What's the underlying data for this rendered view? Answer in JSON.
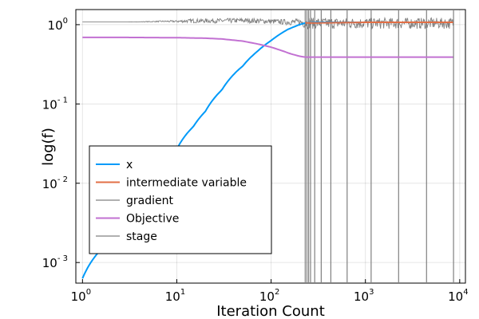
{
  "chart_data": {
    "type": "line",
    "title": "",
    "xlabel": "Iteration Count",
    "ylabel": "log(f)",
    "x_scale": "log",
    "y_scale": "log",
    "xlim": [
      0.85,
      11500
    ],
    "ylim": [
      0.00055,
      1.55
    ],
    "grid": true,
    "legend_position": "bottom-left",
    "x_ticks": [
      {
        "value": 1,
        "base": "10",
        "exp": "0"
      },
      {
        "value": 10,
        "base": "10",
        "exp": "1"
      },
      {
        "value": 100,
        "base": "10",
        "exp": "2"
      },
      {
        "value": 1000,
        "base": "10",
        "exp": "3"
      },
      {
        "value": 10000,
        "base": "10",
        "exp": "4"
      }
    ],
    "y_ticks": [
      {
        "value": 0.001,
        "base": "10",
        "exp": "- 3"
      },
      {
        "value": 0.01,
        "base": "10",
        "exp": "- 2"
      },
      {
        "value": 0.1,
        "base": "10",
        "exp": "- 1"
      },
      {
        "value": 1,
        "base": "10",
        "exp": "0"
      }
    ],
    "series": [
      {
        "name": "x",
        "color": "#009af9",
        "kind": "line",
        "x": [
          1,
          2,
          3,
          5,
          7,
          10,
          15,
          20,
          30,
          50,
          70,
          100,
          150,
          200,
          230,
          300,
          500,
          1000,
          2000,
          5000,
          8500
        ],
        "y": [
          0.00063,
          0.0019,
          0.0036,
          0.0085,
          0.015,
          0.027,
          0.052,
          0.08,
          0.15,
          0.3,
          0.45,
          0.63,
          0.87,
          1.0,
          1.05,
          1.07,
          1.07,
          1.07,
          1.07,
          1.07,
          1.07
        ]
      },
      {
        "name": "intermediate variable",
        "color": "#e26f46",
        "kind": "line",
        "x": [
          230,
          500,
          1000,
          2000,
          5000,
          8500
        ],
        "y": [
          1.05,
          1.06,
          1.07,
          1.07,
          1.07,
          1.07
        ]
      },
      {
        "name": "gradient",
        "color": "#808080",
        "kind": "noise",
        "x": [
          1,
          2,
          3,
          5,
          7,
          10,
          15,
          20,
          30,
          50,
          70,
          100,
          150,
          200,
          230,
          300,
          500,
          1000,
          2000,
          5000,
          8500
        ],
        "y": [
          1.08,
          1.08,
          1.08,
          1.09,
          1.1,
          1.1,
          1.12,
          1.12,
          1.12,
          1.13,
          1.12,
          1.1,
          1.08,
          1.08,
          1.06,
          1.05,
          1.05,
          1.05,
          1.05,
          1.05,
          1.05
        ],
        "spread": [
          0.0,
          0.0,
          0.0,
          0.01,
          0.02,
          0.03,
          0.06,
          0.06,
          0.07,
          0.07,
          0.07,
          0.07,
          0.08,
          0.1,
          0.16,
          0.16,
          0.16,
          0.16,
          0.16,
          0.16,
          0.16
        ]
      },
      {
        "name": "Objective",
        "color": "#c271d2",
        "kind": "line",
        "x": [
          1,
          3,
          10,
          20,
          30,
          50,
          70,
          100,
          130,
          160,
          200,
          230,
          300,
          1000,
          8500
        ],
        "y": [
          0.69,
          0.69,
          0.685,
          0.675,
          0.66,
          0.62,
          0.575,
          0.52,
          0.47,
          0.43,
          0.4,
          0.39,
          0.39,
          0.39,
          0.39
        ]
      },
      {
        "name": "stage",
        "color": "#808080",
        "kind": "vlines",
        "x": [
          230,
          240,
          250,
          262,
          290,
          340,
          430,
          640,
          1150,
          2250,
          4450,
          8600
        ]
      }
    ]
  }
}
